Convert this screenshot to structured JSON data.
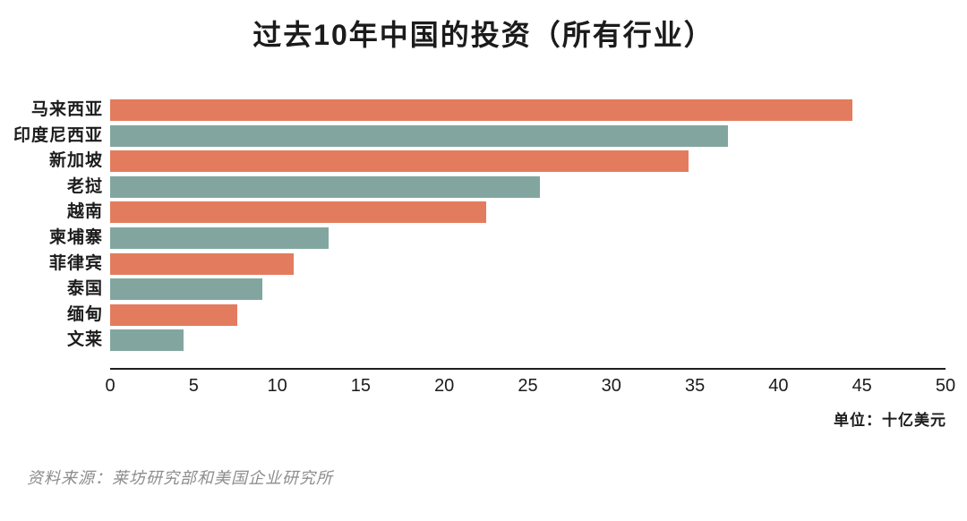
{
  "title": "过去10年中国的投资（所有行业）",
  "unit_label": "单位：十亿美元",
  "source": "资料来源：莱坊研究部和美国企业研究所",
  "colors": {
    "orange": "#E37C5E",
    "teal": "#82A69F",
    "axis": "#1f1f1f",
    "title_text": "#1b1b1b",
    "source_text": "#8d8d8d",
    "background": "#ffffff"
  },
  "chart_data": {
    "type": "bar",
    "orientation": "horizontal",
    "title": "过去10年中国的投资（所有行业）",
    "xlabel": "",
    "ylabel": "",
    "unit": "十亿美元",
    "xlim": [
      0,
      50
    ],
    "xticks": [
      0,
      5,
      10,
      15,
      20,
      25,
      30,
      35,
      40,
      45,
      50
    ],
    "grid": false,
    "legend": false,
    "categories": [
      "马来西亚",
      "印度尼西亚",
      "新加坡",
      "老挝",
      "越南",
      "柬埔寨",
      "菲律宾",
      "泰国",
      "缅甸",
      "文莱"
    ],
    "values": [
      44.4,
      37.0,
      34.6,
      25.7,
      22.5,
      13.1,
      11.0,
      9.1,
      7.6,
      4.4
    ],
    "bar_color_keys": [
      "orange",
      "teal",
      "orange",
      "teal",
      "orange",
      "teal",
      "orange",
      "teal",
      "orange",
      "teal"
    ]
  }
}
